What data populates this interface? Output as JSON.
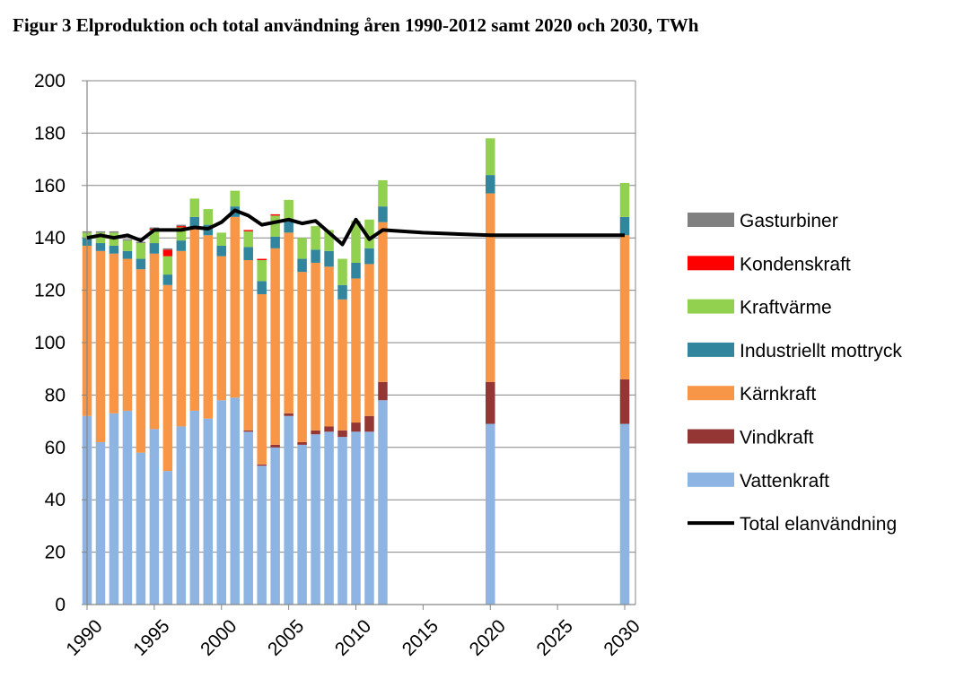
{
  "title": "Figur 3 Elproduktion och total användning åren 1990-2012 samt 2020 och 2030, TWh",
  "chart_data": {
    "type": "bar",
    "stacked": true,
    "title": "Figur 3 Elproduktion och total användning åren 1990-2012 samt 2020 och 2030, TWh",
    "xlabel": "",
    "ylabel": "",
    "ylim": [
      0,
      200
    ],
    "yticks": [
      0,
      20,
      40,
      60,
      80,
      100,
      120,
      140,
      160,
      180,
      200
    ],
    "xlim": [
      1990,
      2031
    ],
    "xticks": [
      "1990",
      "1995",
      "2000",
      "2005",
      "2010",
      "2015",
      "2020",
      "2025",
      "2030"
    ],
    "grid": "horizontal",
    "legend_position": "right",
    "x": [
      1990,
      1991,
      1992,
      1993,
      1994,
      1995,
      1996,
      1997,
      1998,
      1999,
      2000,
      2001,
      2002,
      2003,
      2004,
      2005,
      2006,
      2007,
      2008,
      2009,
      2010,
      2011,
      2012,
      2020,
      2030
    ],
    "series": [
      {
        "name": "Vattenkraft",
        "color": "#8eb4e3",
        "values": [
          72,
          62,
          73,
          74,
          58,
          67,
          51,
          68,
          74,
          71,
          78,
          79,
          66,
          53,
          60,
          72,
          61,
          65,
          66,
          64,
          66,
          66,
          78,
          69,
          69
        ]
      },
      {
        "name": "Vindkraft",
        "color": "#943634",
        "values": [
          0,
          0,
          0,
          0,
          0,
          0,
          0,
          0,
          0,
          0,
          0,
          0,
          0.5,
          0.5,
          1,
          1,
          1,
          1.5,
          2,
          2.5,
          3.5,
          6,
          7,
          16,
          17
        ]
      },
      {
        "name": "Kärnkraft",
        "color": "#f79646",
        "values": [
          65,
          73,
          61,
          58,
          70,
          67,
          71,
          67,
          70,
          70,
          55,
          69,
          65,
          65,
          75,
          69,
          65,
          64,
          61,
          50,
          55,
          58,
          61,
          72,
          55
        ]
      },
      {
        "name": "Industriellt mottryck",
        "color": "#31859c",
        "values": [
          3,
          3,
          3,
          3,
          4,
          4,
          4,
          4,
          4,
          4,
          4,
          4,
          5,
          5,
          4.5,
          4.5,
          5,
          5,
          6,
          5.5,
          6,
          6,
          6,
          7,
          7
        ]
      },
      {
        "name": "Kraftvärme",
        "color": "#92d050",
        "values": [
          2,
          4,
          5,
          4,
          6,
          5,
          7,
          5,
          7,
          6,
          5,
          6,
          6,
          8,
          8,
          8,
          8,
          9,
          8,
          10,
          16,
          11,
          10,
          14,
          13
        ]
      },
      {
        "name": "Kondenskraft",
        "color": "#ff0000",
        "values": [
          0,
          0,
          0,
          0,
          0,
          0.5,
          2.5,
          0.5,
          0,
          0,
          0,
          0,
          0.5,
          0.5,
          0.5,
          0,
          0,
          0,
          0,
          0,
          0,
          0,
          0,
          0,
          0
        ]
      },
      {
        "name": "Gasturbiner",
        "color": "#808080",
        "values": [
          0.5,
          0.5,
          0.5,
          0.5,
          0.5,
          0.5,
          0.5,
          0.5,
          0,
          0,
          0,
          0,
          0,
          0,
          0,
          0,
          0,
          0,
          0,
          0,
          0,
          0,
          0,
          0,
          0
        ]
      }
    ],
    "line": {
      "name": "Total elanvändning",
      "color": "#000000",
      "x": [
        1990,
        1991,
        1992,
        1993,
        1994,
        1995,
        1996,
        1997,
        1998,
        1999,
        2000,
        2001,
        2002,
        2003,
        2004,
        2005,
        2006,
        2007,
        2008,
        2009,
        2010,
        2011,
        2012,
        2015,
        2020,
        2025,
        2030
      ],
      "values": [
        140,
        141,
        140,
        141,
        139,
        143,
        143,
        143,
        144,
        143.5,
        146,
        150.5,
        148.5,
        145,
        146,
        147,
        145.5,
        146.5,
        142,
        137.5,
        147,
        139.5,
        143,
        142,
        141,
        141,
        141
      ]
    }
  },
  "legend": [
    {
      "label": "Gasturbiner",
      "color": "#808080",
      "kind": "box"
    },
    {
      "label": "Kondenskraft",
      "color": "#ff0000",
      "kind": "box"
    },
    {
      "label": "Kraftvärme",
      "color": "#92d050",
      "kind": "box"
    },
    {
      "label": "Industriellt mottryck",
      "color": "#31859c",
      "kind": "box"
    },
    {
      "label": "Kärnkraft",
      "color": "#f79646",
      "kind": "box"
    },
    {
      "label": "Vindkraft",
      "color": "#943634",
      "kind": "box"
    },
    {
      "label": "Vattenkraft",
      "color": "#8eb4e3",
      "kind": "box"
    },
    {
      "label": "Total elanvändning",
      "color": "#000000",
      "kind": "line"
    }
  ]
}
